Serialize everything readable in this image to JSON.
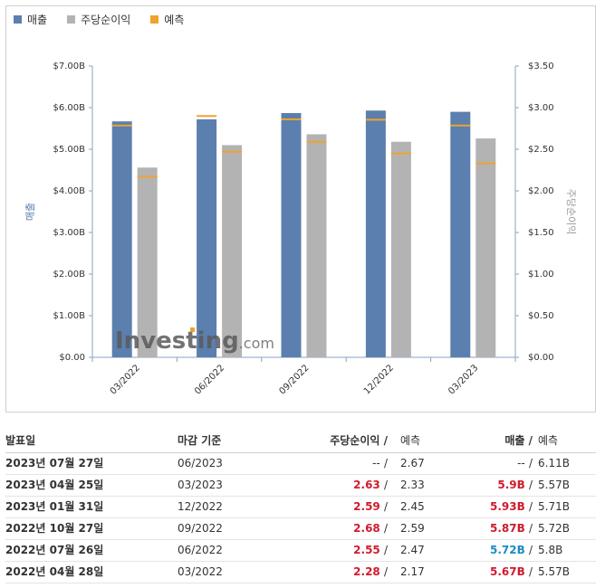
{
  "legend": [
    {
      "label": "매출",
      "color": "#5b7fae"
    },
    {
      "label": "주당순이익",
      "color": "#b3b3b3"
    },
    {
      "label": "예측",
      "color": "#f0a22e"
    }
  ],
  "watermark": {
    "brand": "Investing",
    "suffix": ".com"
  },
  "chart_data": {
    "type": "bar",
    "categories": [
      "03/2022",
      "06/2022",
      "09/2022",
      "12/2022",
      "03/2023"
    ],
    "y_left": {
      "label": "매출",
      "ticks": [
        "$0.00",
        "$1.00B",
        "$2.00B",
        "$3.00B",
        "$4.00B",
        "$5.00B",
        "$6.00B",
        "$7.00B"
      ],
      "range": [
        0,
        7
      ]
    },
    "y_right": {
      "label": "주당순이익",
      "ticks": [
        "$0.00",
        "$0.50",
        "$1.00",
        "$1.50",
        "$2.00",
        "$2.50",
        "$3.00",
        "$3.50"
      ],
      "range": [
        0,
        3.5
      ]
    },
    "series": [
      {
        "name": "매출",
        "axis": "left",
        "color": "#5b7fae",
        "values": [
          5.67,
          5.72,
          5.87,
          5.93,
          5.9
        ],
        "forecast": [
          5.57,
          5.8,
          5.72,
          5.71,
          5.57
        ]
      },
      {
        "name": "주당순이익",
        "axis": "right",
        "color": "#b3b3b3",
        "values": [
          2.28,
          2.55,
          2.68,
          2.59,
          2.63
        ],
        "forecast": [
          2.17,
          2.47,
          2.59,
          2.45,
          2.33
        ]
      }
    ],
    "forecast_color": "#f0a22e",
    "grid": false
  },
  "table": {
    "headers": {
      "date": "발표일",
      "period": "마감 기준",
      "eps": "주당순이익",
      "eps_sep": "/",
      "eps_fc": "예측",
      "rev": "매출",
      "rev_sep": "/",
      "rev_fc": "예측"
    },
    "rows": [
      {
        "date": "2023년 07월 27일",
        "period": "06/2023",
        "eps": "--",
        "eps_sep": "/",
        "eps_fc": "2.67",
        "rev": "--",
        "rev_sep": "/",
        "rev_fc": "6.11B",
        "eps_class": "neg-none",
        "rev_class": "neg-none"
      },
      {
        "date": "2023년 04월 25일",
        "period": "03/2023",
        "eps": "2.63",
        "eps_sep": "/",
        "eps_fc": "2.33",
        "rev": "5.9B",
        "rev_sep": "/",
        "rev_fc": "5.57B",
        "eps_class": "up",
        "rev_class": "up"
      },
      {
        "date": "2023년 01월 31일",
        "period": "12/2022",
        "eps": "2.59",
        "eps_sep": "/",
        "eps_fc": "2.45",
        "rev": "5.93B",
        "rev_sep": "/",
        "rev_fc": "5.71B",
        "eps_class": "up",
        "rev_class": "up"
      },
      {
        "date": "2022년 10월 27일",
        "period": "09/2022",
        "eps": "2.68",
        "eps_sep": "/",
        "eps_fc": "2.59",
        "rev": "5.87B",
        "rev_sep": "/",
        "rev_fc": "5.72B",
        "eps_class": "up",
        "rev_class": "up"
      },
      {
        "date": "2022년 07월 26일",
        "period": "06/2022",
        "eps": "2.55",
        "eps_sep": "/",
        "eps_fc": "2.47",
        "rev": "5.72B",
        "rev_sep": "/",
        "rev_fc": "5.8B",
        "eps_class": "up",
        "rev_class": "down"
      },
      {
        "date": "2022년 04월 28일",
        "period": "03/2022",
        "eps": "2.28",
        "eps_sep": "/",
        "eps_fc": "2.17",
        "rev": "5.67B",
        "rev_sep": "/",
        "rev_fc": "5.57B",
        "eps_class": "up",
        "rev_class": "up"
      }
    ]
  }
}
